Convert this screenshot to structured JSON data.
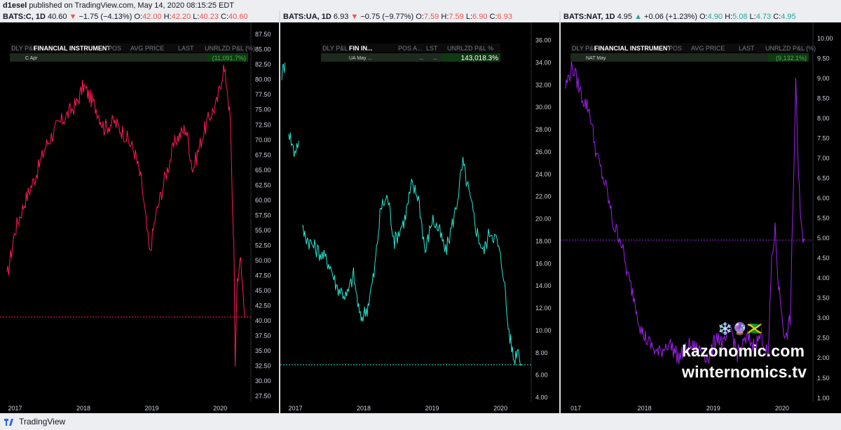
{
  "header": {
    "user": "d1esel",
    "published": "published on TradingView.com, May 14, 2020 08:15:25 EDT"
  },
  "footer": {
    "brand": "TradingView"
  },
  "watermark": {
    "line1": "kazonomic.com",
    "line2": "winternomics.tv",
    "emojis": "❄️🔮🇯🇲"
  },
  "colors": {
    "bg": "#000000",
    "axis_text": "#d1d4dc",
    "c_series": "#ff1a53",
    "ua_series": "#26e6d0",
    "nat_series": "#a020f0"
  },
  "chart_data": [
    {
      "type": "line",
      "symbol": "BATS:C, 1D",
      "ohlc": {
        "price": "40.60",
        "change": "−1.75 (−4.13%)",
        "o": "42.00",
        "h": "42.20",
        "l": "40.23",
        "c": "40.60",
        "direction": "down"
      },
      "table": {
        "headers": [
          "DLY P&L",
          "FINANCIAL INSTRUMENT",
          "POS",
          "AVG PRICE",
          "LAST",
          "UNRLZD P&L (%)"
        ],
        "row": [
          "C Apr",
          "(11,091.7%)"
        ]
      },
      "x_labels": [
        "2017",
        "2018",
        "2019",
        "2020"
      ],
      "y_ticks": [
        "87.50",
        "85.00",
        "82.50",
        "80.00",
        "77.50",
        "75.00",
        "72.50",
        "70.00",
        "67.50",
        "65.00",
        "62.50",
        "60.00",
        "57.50",
        "55.00",
        "52.50",
        "50.00",
        "47.50",
        "45.00",
        "42.50",
        "40.00",
        "37.50",
        "35.00",
        "32.50",
        "30.00",
        "27.50"
      ],
      "ylim": [
        26.5,
        89.5
      ],
      "hline": 40.6,
      "series": [
        {
          "x": [
            2016.88,
            2017.0,
            2017.15,
            2017.3,
            2017.45,
            2017.6,
            2017.75,
            2017.9,
            2018.0,
            2018.1,
            2018.2,
            2018.3,
            2018.45,
            2018.6,
            2018.75,
            2018.85,
            2018.97,
            2019.05,
            2019.2,
            2019.35,
            2019.5,
            2019.6,
            2019.75,
            2019.85,
            2019.95,
            2020.05,
            2020.1,
            2020.15,
            2020.18,
            2020.2,
            2020.22,
            2020.25,
            2020.3,
            2020.36
          ],
          "y": [
            47,
            55,
            60,
            64,
            69,
            72,
            74,
            76,
            79,
            77,
            75,
            72,
            73,
            71,
            68,
            63,
            51,
            57,
            64,
            70,
            72,
            65,
            71,
            74,
            76,
            82,
            79,
            73,
            59,
            53,
            33,
            47,
            50,
            40.6
          ]
        }
      ]
    },
    {
      "type": "line",
      "symbol": "BATS:UA, 1D",
      "ohlc": {
        "price": "6.93",
        "change": "−0.75 (−9.77%)",
        "o": "7.59",
        "h": "7.59",
        "l": "6.90",
        "c": "6.93",
        "direction": "down"
      },
      "table": {
        "headers": [
          "DLY P&L",
          "FIN IN...",
          "POS A...",
          "LST",
          "UNRLZD P&L %"
        ],
        "row": [
          "UA May ...",
          "...",
          "...",
          "143,018.3%"
        ]
      },
      "x_labels": [
        "2017",
        "2018",
        "2019",
        "2020"
      ],
      "y_ticks": [
        "36.00",
        "34.00",
        "32.00",
        "30.00",
        "28.00",
        "26.00",
        "24.00",
        "22.00",
        "20.00",
        "18.00",
        "16.00",
        "14.00",
        "12.00",
        "10.00",
        "8.00",
        "6.00",
        "4.00"
      ],
      "ylim": [
        3.6,
        37.6
      ],
      "hline": 6.93,
      "series": [
        {
          "x": [
            2016.8,
            2016.85
          ],
          "y": [
            33,
            34
          ]
        },
        {
          "x": [
            2016.9,
            2016.98,
            2017.05
          ],
          "y": [
            28,
            26,
            27
          ]
        },
        {
          "x": [
            2017.1,
            2017.2,
            2017.35,
            2017.5,
            2017.6,
            2017.75,
            2017.85,
            2017.95,
            2018.05,
            2018.15,
            2018.25,
            2018.35,
            2018.45,
            2018.6,
            2018.7,
            2018.8,
            2018.9,
            2019.0,
            2019.1,
            2019.2,
            2019.35,
            2019.45,
            2019.55,
            2019.65,
            2019.75,
            2019.85,
            2019.95,
            2020.05,
            2020.1,
            2020.15,
            2020.2,
            2020.25,
            2020.32
          ],
          "y": [
            19,
            18,
            17,
            16,
            14,
            13,
            15,
            11,
            12,
            15,
            21,
            22,
            18,
            20,
            23,
            22,
            17,
            20,
            19,
            17,
            21,
            25,
            22,
            19,
            17,
            19,
            18,
            15,
            11,
            9,
            7.3,
            8.5,
            6.93
          ]
        }
      ]
    },
    {
      "type": "line",
      "symbol": "BATS:NAT, 1D",
      "ohlc": {
        "price": "4.95",
        "change": "+0.06 (+1.23%)",
        "o": "4.90",
        "h": "5.08",
        "l": "4.73",
        "c": "4.95",
        "direction": "up"
      },
      "table": {
        "headers": [
          "DLY P&L",
          "FINANCIAL INSTRUMENT",
          "POS",
          "AVG PRICE",
          "LAST",
          "UNRLZD P&L (%)"
        ],
        "row": [
          "NAT May",
          "(9,132.1%)"
        ]
      },
      "x_labels": [
        "017",
        "2018",
        "2019",
        "2020"
      ],
      "y_ticks": [
        "10.00",
        "9.50",
        "9.00",
        "8.50",
        "8.00",
        "7.50",
        "7.00",
        "6.50",
        "6.00",
        "5.50",
        "5.00",
        "4.50",
        "4.00",
        "3.50",
        "3.00",
        "2.50",
        "2.00",
        "1.50",
        "1.00"
      ],
      "ylim": [
        0.9,
        10.4
      ],
      "hline": 4.95,
      "series": [
        {
          "x": [
            2016.85,
            2016.95,
            2017.1,
            2017.2,
            2017.3,
            2017.45,
            2017.55,
            2017.65,
            2017.75,
            2017.85,
            2017.95,
            2018.05,
            2018.2,
            2018.35,
            2018.5,
            2018.65,
            2018.8,
            2018.95,
            2019.05,
            2019.15,
            2019.25,
            2019.35,
            2019.5,
            2019.6,
            2019.7,
            2019.8,
            2019.85,
            2019.9,
            2019.95,
            2020.05,
            2020.12,
            2020.16,
            2020.2,
            2020.24,
            2020.28,
            2020.33
          ],
          "y": [
            8.8,
            9.3,
            8.5,
            8.2,
            7.1,
            6.2,
            5.3,
            5.0,
            4.1,
            3.5,
            2.7,
            2.4,
            2.1,
            2.4,
            2.0,
            2.3,
            2.2,
            2.0,
            2.6,
            2.3,
            2.8,
            2.1,
            2.5,
            2.3,
            2.6,
            2.0,
            4.5,
            5.2,
            3.8,
            2.4,
            3.0,
            5.8,
            9.0,
            6.5,
            5.2,
            4.95
          ]
        }
      ]
    }
  ]
}
